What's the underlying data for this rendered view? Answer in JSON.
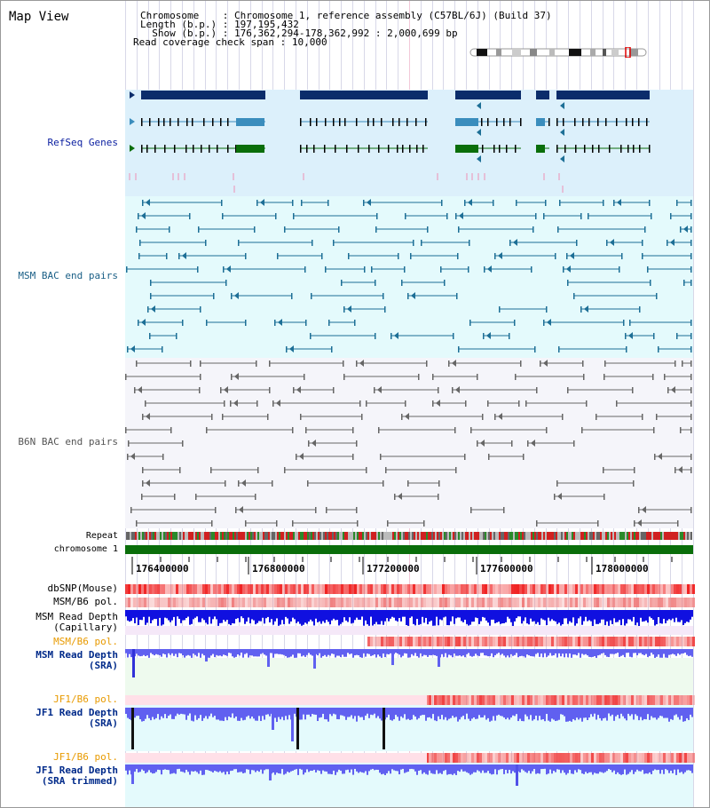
{
  "title": "Map View",
  "info": {
    "chromosome_key": "Chromosome",
    "chromosome_val": "Chromosome 1, reference assembly (C57BL/6J) (Build 37)",
    "length_key": "Length (b.p.)",
    "length_val": "197,195,432",
    "show_key": "Show (b.p.)",
    "show_val": "176,362,294-178,362,992 : 2,000,699 bp",
    "span_key": "Read coverage check span",
    "span_val": "10,000"
  },
  "tracks": {
    "refseq": "RefSeq Genes",
    "msm_bac": "MSM BAC end pairs",
    "b6n_bac": "B6N BAC end pairs",
    "repeat": "Repeat",
    "chromosome": "chromosome 1",
    "dbsnp": "dbSNP(Mouse)",
    "msm_b6_pol_1": "MSM/B6 pol.",
    "msm_depth_cap_1": "MSM Read Depth",
    "msm_depth_cap_2": "(Capillary)",
    "msm_b6_pol_2": "MSM/B6 pol.",
    "msm_depth_sra_1": "MSM Read Depth",
    "msm_depth_sra_2": "(SRA)",
    "jf1_b6_pol_1": "JF1/B6 pol.",
    "jf1_depth_sra_1": "JF1 Read Depth",
    "jf1_depth_sra_2": "(SRA)",
    "jf1_b6_pol_2": "JF1/B6 pol.",
    "jf1_depth_trim_1": "JF1 Read Depth",
    "jf1_depth_trim_2": "(SRA trimmed)"
  },
  "axis_ticks": [
    "176400000",
    "176800000",
    "177200000",
    "177600000",
    "178000000"
  ],
  "colors": {
    "refseq_bg": "#dcf0fb",
    "msm_bac_bg": "#e4fafc",
    "b6n_bac_bg": "#f5f5fa",
    "gene_navy": "#0b2d6b",
    "gene_steel": "#3a8dbd",
    "gene_green": "#0a6e0a",
    "snp_pink": "#ee8fb4",
    "bac_msm": "#1d6f96",
    "bac_b6n": "#666666",
    "chrom_green": "#0a6e0a",
    "depth_blue": "#1010e0",
    "depth_violet": "#6060f0"
  }
}
